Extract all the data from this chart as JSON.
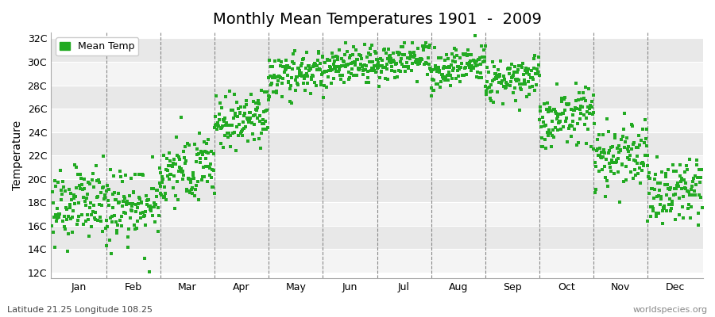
{
  "title": "Monthly Mean Temperatures 1901  -  2009",
  "ylabel": "Temperature",
  "xlabel_labels": [
    "Jan",
    "Feb",
    "Mar",
    "Apr",
    "May",
    "Jun",
    "Jul",
    "Aug",
    "Sep",
    "Oct",
    "Nov",
    "Dec"
  ],
  "subtitle": "Latitude 21.25 Longitude 108.25",
  "watermark": "worldspecies.org",
  "ytick_labels": [
    "12C",
    "14C",
    "16C",
    "18C",
    "20C",
    "22C",
    "24C",
    "26C",
    "28C",
    "30C",
    "32C"
  ],
  "ytick_values": [
    12,
    14,
    16,
    18,
    20,
    22,
    24,
    26,
    28,
    30,
    32
  ],
  "ylim": [
    11.5,
    32.5
  ],
  "dot_color": "#22aa22",
  "dot_size": 5,
  "background_color": "#ffffff",
  "plot_bg_color": "#ffffff",
  "band_color_dark": "#e8e8e8",
  "band_color_light": "#f4f4f4",
  "legend_label": "Mean Temp",
  "mean_temps": [
    17.5,
    17.2,
    20.5,
    24.8,
    28.5,
    29.2,
    29.6,
    29.3,
    28.2,
    25.0,
    21.5,
    18.5
  ],
  "std_devs": [
    1.4,
    1.8,
    1.5,
    1.2,
    0.9,
    0.8,
    0.8,
    0.8,
    0.9,
    1.3,
    1.4,
    1.5
  ],
  "warming_trend": 0.008,
  "num_years": 109,
  "title_fontsize": 14,
  "axis_fontsize": 10,
  "tick_fontsize": 9,
  "legend_marker": "s"
}
